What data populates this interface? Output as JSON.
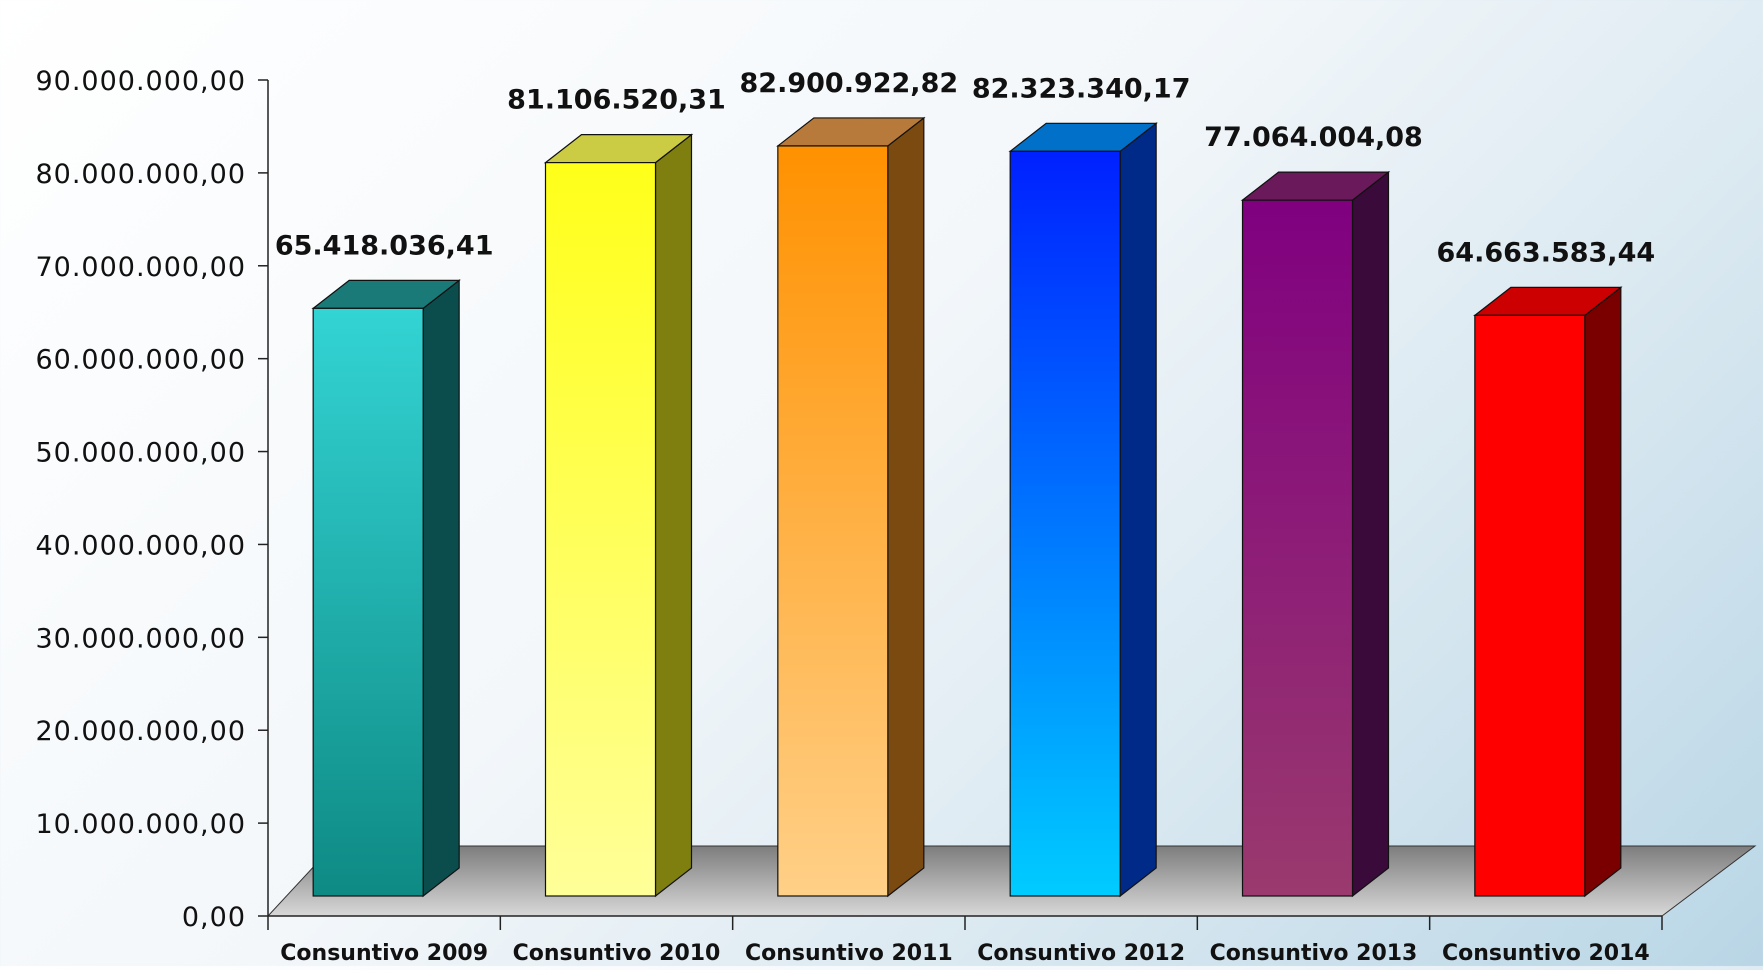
{
  "chart_data": {
    "type": "bar",
    "title": "",
    "xlabel": "",
    "ylabel": "",
    "categories": [
      "Consuntivo 2009",
      "Consuntivo 2010",
      "Consuntivo 2011",
      "Consuntivo 2012",
      "Consuntivo 2013",
      "Consuntivo 2014"
    ],
    "values": [
      65418036.41,
      81106520.31,
      82900922.82,
      82323340.17,
      77064004.08,
      64663583.44
    ],
    "value_labels": [
      "65.418.036,41",
      "81.106.520,31",
      "82.900.922,82",
      "82.323.340,17",
      "77.064.004,08",
      "64.663.583,44"
    ],
    "ylim": [
      0,
      90000000
    ],
    "yticks": [
      0,
      10000000,
      20000000,
      30000000,
      40000000,
      50000000,
      60000000,
      70000000,
      80000000,
      90000000
    ],
    "ytick_labels": [
      "0,00",
      "10.000.000,00",
      "20.000.000,00",
      "30.000.000,00",
      "40.000.000,00",
      "50.000.000,00",
      "60.000.000,00",
      "70.000.000,00",
      "80.000.000,00",
      "90.000.000,00"
    ],
    "grid": false,
    "style": "3d",
    "colors": [
      {
        "front_top": "#33d4d4",
        "front_bottom": "#0e8a84",
        "side": "#0b4d4d",
        "top": "#1a7a78"
      },
      {
        "front_top": "#ffff1a",
        "front_bottom": "#ffff99",
        "side": "#7f7f10",
        "top": "#cccc44"
      },
      {
        "front_top": "#ff9100",
        "front_bottom": "#ffd088",
        "side": "#7a4a10",
        "top": "#b87a3a"
      },
      {
        "front_top": "#0020ff",
        "front_bottom": "#00ccff",
        "side": "#002a88",
        "top": "#0070c8"
      },
      {
        "front_top": "#800080",
        "front_bottom": "#9a3a6e",
        "side": "#3a0a3a",
        "top": "#6a1a5a"
      },
      {
        "front_top": "#ff0000",
        "front_bottom": "#ff0000",
        "side": "#7a0000",
        "top": "#cc0000"
      }
    ]
  }
}
